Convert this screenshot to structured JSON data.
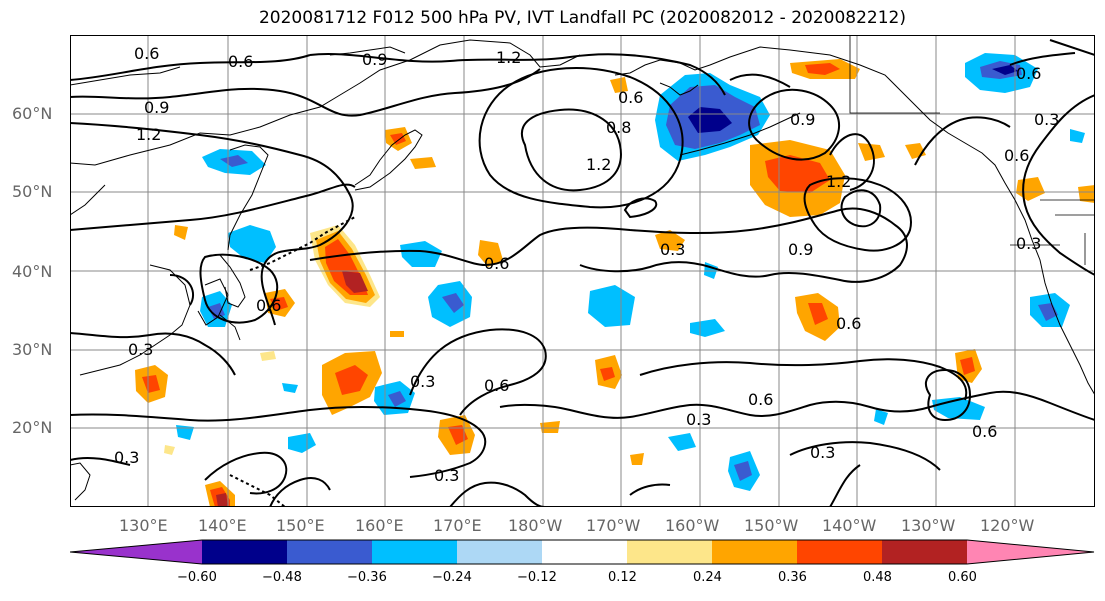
{
  "title": "2020081712 F012 500 hPa PV, IVT Landfall PC (2020082012 - 2020082212)",
  "lat_labels": [
    "60°N",
    "50°N",
    "40°N",
    "30°N",
    "20°N"
  ],
  "lon_labels": [
    "130°E",
    "140°E",
    "150°E",
    "160°E",
    "170°E",
    "180°W",
    "170°W",
    "160°W",
    "150°W",
    "140°W",
    "130°W",
    "120°W"
  ],
  "contour_labels": [
    "0.6",
    "0.6",
    "0.9",
    "1.2",
    "0.9",
    "1.2",
    "0.6",
    "0.8",
    "1.2",
    "0.9",
    "1.2",
    "0.6",
    "0.3",
    "0.6",
    "0.3",
    "0.9",
    "0.6",
    "0.6",
    "0.6",
    "0.3",
    "0.3",
    "0.6",
    "0.3",
    "0.6",
    "0.3",
    "0.3",
    "0.3",
    "0.6",
    "0.3"
  ],
  "colorbar": {
    "ticks": [
      "−0.60",
      "−0.48",
      "−0.36",
      "−0.24",
      "−0.12",
      "0.12",
      "0.24",
      "0.36",
      "0.48",
      "0.60"
    ],
    "colors": [
      "#9932cc",
      "#00008b",
      "#3a5bd0",
      "#00bfff",
      "#add8f5",
      "#ffffff",
      "#fde68a",
      "#ffa500",
      "#ff4500",
      "#b22222",
      "#ff85b3"
    ]
  },
  "colors": {
    "contour": "#000000",
    "coast": "#000000",
    "grid": "#888888"
  }
}
